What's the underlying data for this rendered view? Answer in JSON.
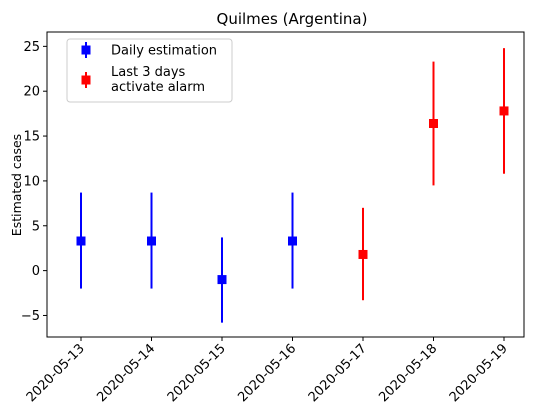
{
  "chart_data": {
    "type": "scatter",
    "title": "Quilmes (Argentina)",
    "xlabel": "",
    "ylabel": "Estimated cases",
    "ylim": [
      -7.4,
      26.6
    ],
    "yticks": [
      -5,
      0,
      5,
      10,
      15,
      20,
      25
    ],
    "grid": false,
    "legend_position": "top-left",
    "categories": [
      "2020-05-13",
      "2020-05-14",
      "2020-05-15",
      "2020-05-16",
      "2020-05-17",
      "2020-05-18",
      "2020-05-19"
    ],
    "series": [
      {
        "name": "Daily estimation",
        "color": "#0000ff",
        "points": [
          {
            "x": "2020-05-13",
            "y": 3.3,
            "low": -2.0,
            "high": 8.7
          },
          {
            "x": "2020-05-14",
            "y": 3.3,
            "low": -2.0,
            "high": 8.7
          },
          {
            "x": "2020-05-15",
            "y": -1.0,
            "low": -5.8,
            "high": 3.7
          },
          {
            "x": "2020-05-16",
            "y": 3.3,
            "low": -2.0,
            "high": 8.7
          }
        ]
      },
      {
        "name": "Last 3 days\nactivate alarm",
        "color": "#ff0000",
        "points": [
          {
            "x": "2020-05-17",
            "y": 1.8,
            "low": -3.3,
            "high": 7.0
          },
          {
            "x": "2020-05-18",
            "y": 16.4,
            "low": 9.5,
            "high": 23.3
          },
          {
            "x": "2020-05-19",
            "y": 17.8,
            "low": 10.8,
            "high": 24.8
          }
        ]
      }
    ]
  }
}
